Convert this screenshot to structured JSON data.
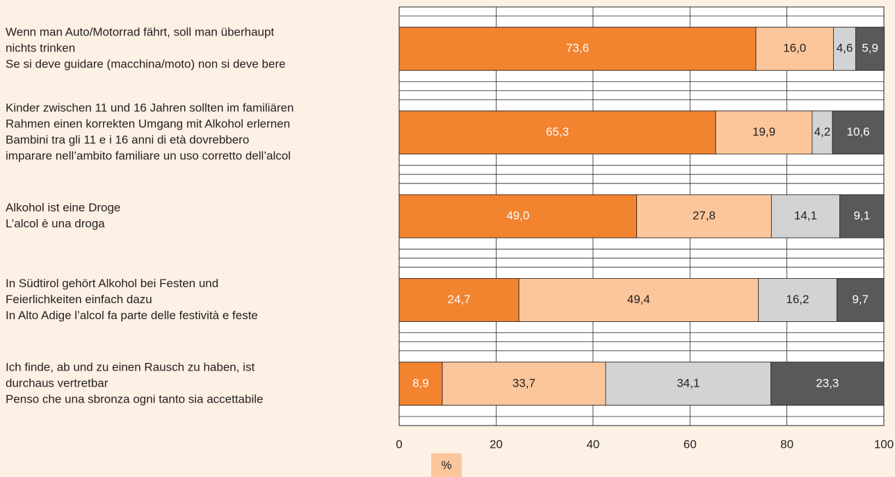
{
  "chart_data": {
    "type": "stacked-barh",
    "categories": [
      [
        "Wenn man Auto/Motorrad fährt, soll man überhaupt",
        "nichts trinken",
        "Se si deve guidare (macchina/moto) non si deve bere"
      ],
      [
        "Kinder zwischen 11 und 16 Jahren sollten im familiären",
        "Rahmen einen korrekten Umgang mit Alkohol erlernen",
        "Bambini tra gli 11 e i 16 anni di età dovrebbero",
        "imparare nell’ambito familiare un uso corretto dell’alcol"
      ],
      [
        "Alkohol ist eine Droge",
        "L’alcol è una droga"
      ],
      [
        "In Südtirol gehört Alkohol bei Festen und",
        "Feierlichkeiten einfach dazu",
        "In Alto Adige l’alcol fa parte delle festività e feste"
      ],
      [
        "Ich finde, ab und zu einen Rausch zu haben, ist",
        "durchaus vertretbar",
        "Penso che una sbronza ogni tanto sia accettabile"
      ]
    ],
    "series": [
      {
        "color": "#f2832f",
        "values": [
          73.6,
          65.3,
          49.0,
          24.7,
          8.9
        ],
        "value_labels": [
          "73,6",
          "65,3",
          "49,0",
          "24,7",
          "8,9"
        ]
      },
      {
        "color": "#fbc69b",
        "values": [
          16.0,
          19.9,
          27.8,
          49.4,
          33.7
        ],
        "value_labels": [
          "16,0",
          "19,9",
          "27,8",
          "49,4",
          "33,7"
        ]
      },
      {
        "color": "#d1d3d4",
        "values": [
          4.6,
          4.2,
          14.1,
          16.2,
          34.1
        ],
        "value_labels": [
          "4,6",
          "4,2",
          "14,1",
          "16,2",
          "34,1"
        ]
      },
      {
        "color": "#58595b",
        "values": [
          5.9,
          10.6,
          9.1,
          9.7,
          23.3
        ],
        "value_labels": [
          "5,9",
          "10,6",
          "9,1",
          "9,7",
          "23,3"
        ]
      }
    ],
    "xlim": [
      0,
      100
    ],
    "xticks": [
      0,
      20,
      40,
      60,
      80,
      100
    ],
    "xlabel": "%",
    "grid": true
  }
}
